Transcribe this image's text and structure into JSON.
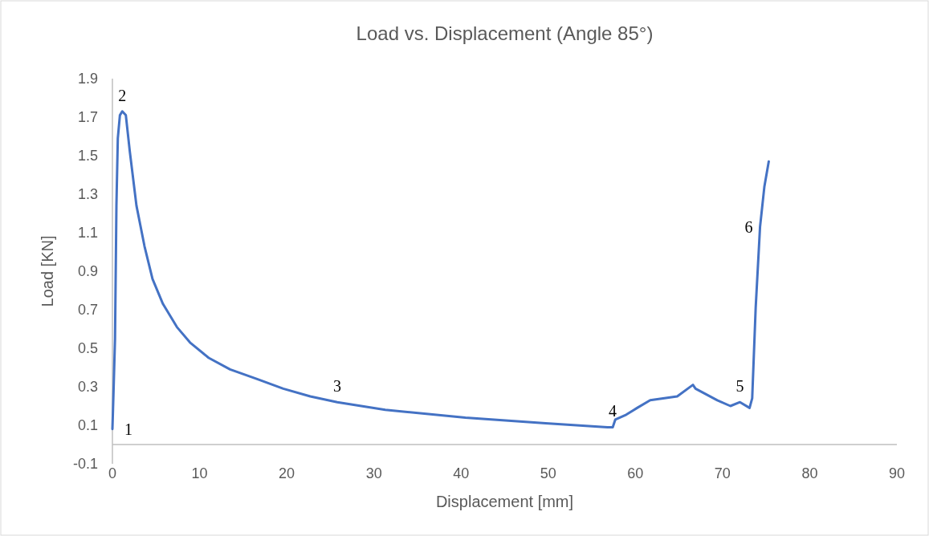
{
  "chart_data": {
    "type": "line",
    "title": "Load vs. Displacement (Angle 85°)",
    "xlabel": "Displacement  [mm]",
    "ylabel": "Load [KN]",
    "xlim": [
      0,
      90
    ],
    "xticks": [
      0,
      10,
      20,
      30,
      40,
      50,
      60,
      70,
      80,
      90
    ],
    "ylim": [
      -0.1,
      1.9
    ],
    "yticks": [
      -0.1,
      0.1,
      0.3,
      0.5,
      0.7,
      0.9,
      1.1,
      1.3,
      1.5,
      1.7,
      1.9
    ],
    "grid": false,
    "marker": "none",
    "line_style": "solid",
    "series": [
      {
        "color": "#4472c4",
        "x": [
          0,
          0.1,
          0.3,
          0.46,
          0.62,
          0.86,
          1.13,
          1.54,
          2.0,
          2.76,
          3.68,
          4.6,
          5.8,
          7.4,
          8.9,
          11.05,
          13.5,
          16.6,
          19.6,
          22.7,
          25.8,
          31.3,
          40.5,
          49.7,
          56.8,
          57.4,
          57.7,
          58.95,
          60.2,
          61.7,
          64.8,
          66.6,
          66.9,
          69.4,
          70.9,
          72.0,
          73.1,
          73.4,
          73.8,
          74.3,
          74.8,
          75.3
        ],
        "values": [
          0.08,
          0.23,
          0.55,
          1.24,
          1.59,
          1.71,
          1.73,
          1.71,
          1.52,
          1.24,
          1.03,
          0.86,
          0.73,
          0.61,
          0.53,
          0.45,
          0.39,
          0.34,
          0.29,
          0.25,
          0.22,
          0.18,
          0.14,
          0.11,
          0.09,
          0.09,
          0.13,
          0.155,
          0.19,
          0.23,
          0.25,
          0.31,
          0.29,
          0.23,
          0.2,
          0.22,
          0.19,
          0.24,
          0.71,
          1.13,
          1.34,
          1.47
        ]
      }
    ],
    "annotations": [
      {
        "text": "1",
        "x": 0,
        "y": 0.08
      },
      {
        "text": "2",
        "x": 1.13,
        "y": 1.73
      },
      {
        "text": "3",
        "x": 25.8,
        "y": 0.22
      },
      {
        "text": "4",
        "x": 57.4,
        "y": 0.09
      },
      {
        "text": "5",
        "x": 72.0,
        "y": 0.22
      },
      {
        "text": "6",
        "x": 74.3,
        "y": 1.13
      }
    ]
  }
}
